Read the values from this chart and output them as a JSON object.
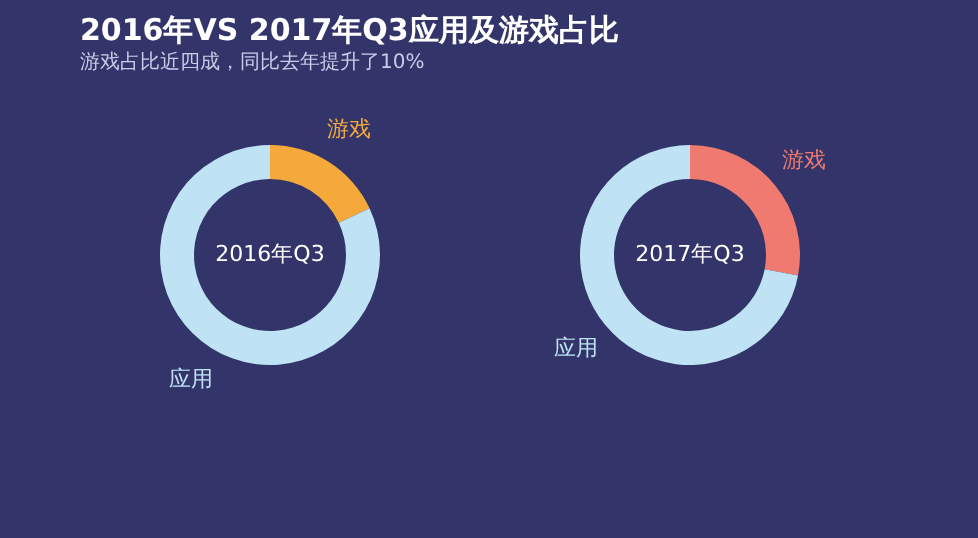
{
  "chart_data": [
    {
      "type": "donut",
      "title": "2016年VS 2017年Q3应用及游戏占比",
      "subtitle": "游戏占比近四成，同比去年提升了10%",
      "annotations": [
        "2016年Q3"
      ],
      "categories": [
        "游戏",
        "应用"
      ],
      "values": [
        18,
        82
      ],
      "colors": [
        "#f5a93b",
        "#bfe3f5"
      ],
      "legend": false
    },
    {
      "type": "donut",
      "annotations": [
        "2017年Q3"
      ],
      "categories": [
        "游戏",
        "应用"
      ],
      "values": [
        28,
        72
      ],
      "colors": [
        "#f07a70",
        "#bfe3f5"
      ],
      "legend": false
    }
  ]
}
